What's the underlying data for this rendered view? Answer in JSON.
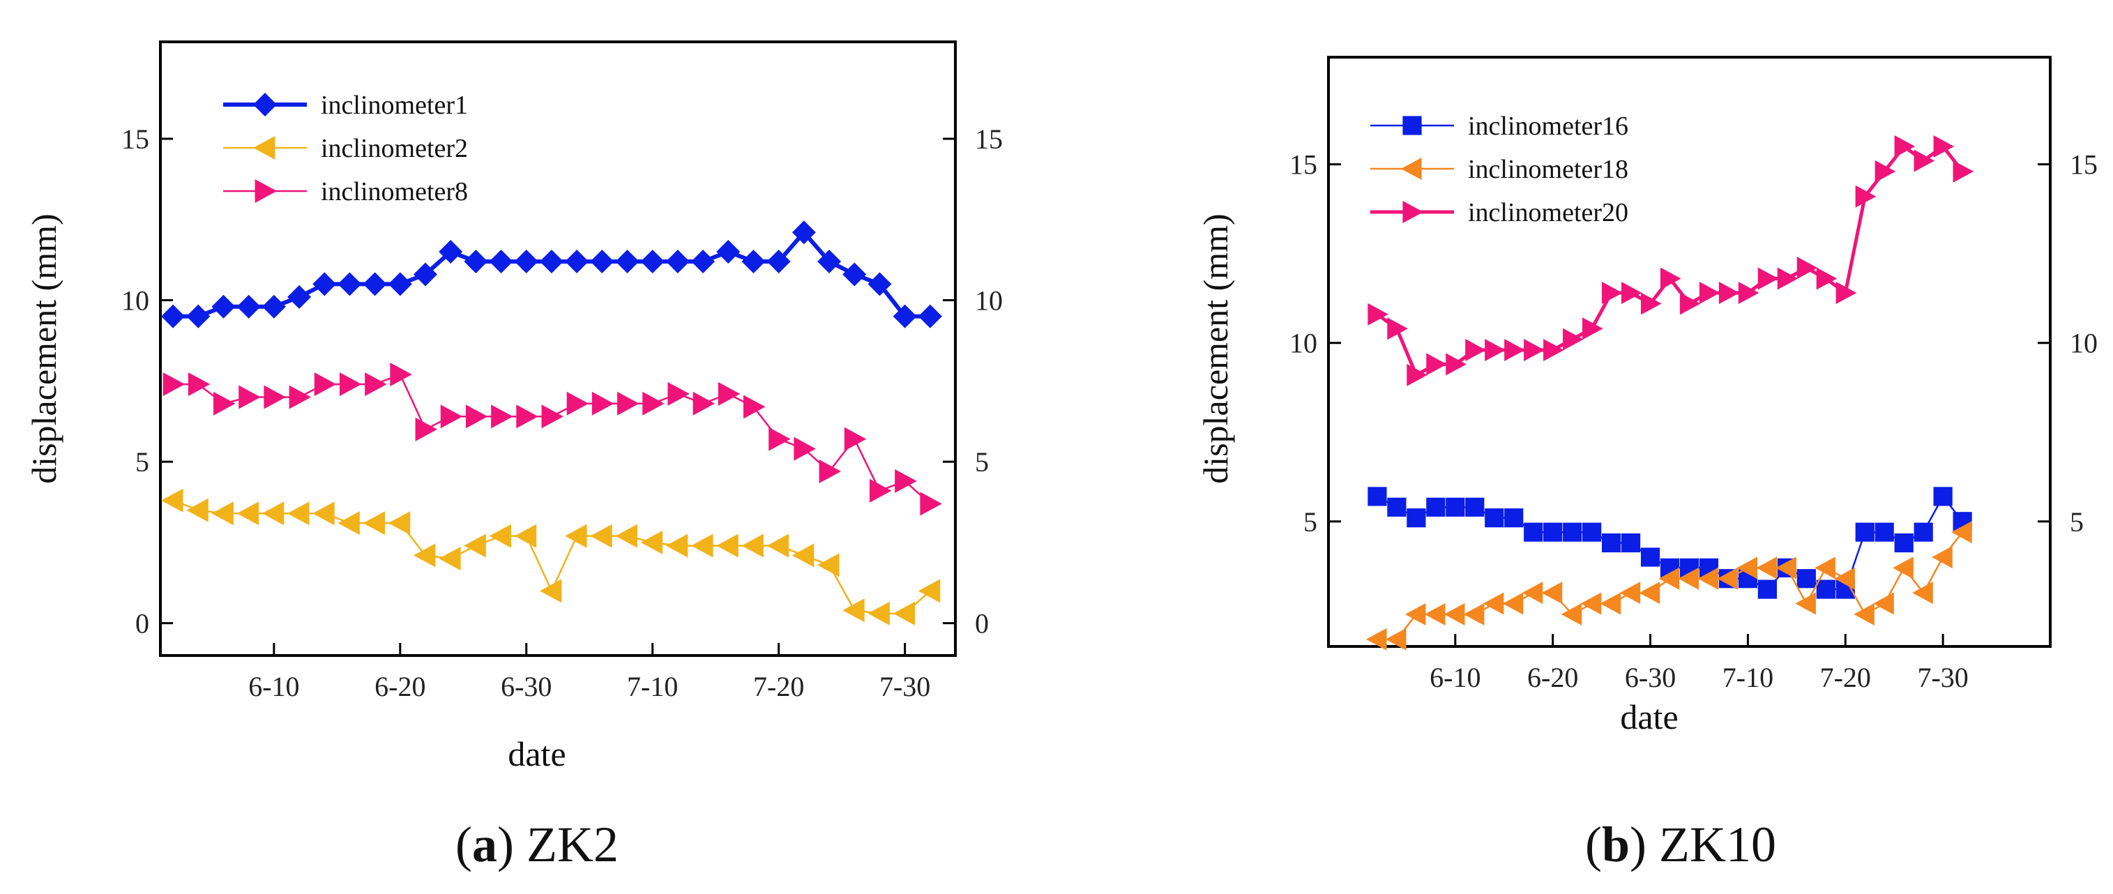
{
  "colors": {
    "inclinometer1": "#0b1ee6",
    "inclinometer2": "#f2b31a",
    "inclinometer8": "#f0147a",
    "inclinometer16": "#0b1ee6",
    "inclinometer18": "#f5871f",
    "inclinometer20": "#f0147a"
  },
  "chart_data": [
    {
      "type": "line",
      "panel": "a",
      "caption_letter": "a",
      "caption_text": "ZK2",
      "xlabel": "date",
      "ylabel": "displacement (mm)",
      "xlim": [
        "6-01",
        "8-03"
      ],
      "ylim": [
        -1,
        18
      ],
      "x_ticks": [
        "6-10",
        "6-20",
        "6-30",
        "7-10",
        "7-20",
        "7-30"
      ],
      "y_ticks": [
        0,
        5,
        10,
        15
      ],
      "y_ticks_right": [
        0,
        5,
        10,
        15
      ],
      "legend_position": "top-left",
      "series": [
        {
          "name": "inclinometer1",
          "marker": "diamond",
          "x": [
            "6-02",
            "6-04",
            "6-06",
            "6-08",
            "6-10",
            "6-12",
            "6-14",
            "6-16",
            "6-18",
            "6-20",
            "6-22",
            "6-24",
            "6-26",
            "6-28",
            "6-30",
            "7-02",
            "7-04",
            "7-06",
            "7-08",
            "7-10",
            "7-12",
            "7-14",
            "7-16",
            "7-18",
            "7-20",
            "7-22",
            "7-24",
            "7-26",
            "7-28",
            "7-30",
            "8-01"
          ],
          "values": [
            9.5,
            9.5,
            9.8,
            9.8,
            9.8,
            10.1,
            10.5,
            10.5,
            10.5,
            10.5,
            10.8,
            11.5,
            11.2,
            11.2,
            11.2,
            11.2,
            11.2,
            11.2,
            11.2,
            11.2,
            11.2,
            11.2,
            11.5,
            11.2,
            11.2,
            12.1,
            11.2,
            10.8,
            10.5,
            9.5,
            9.5
          ]
        },
        {
          "name": "inclinometer2",
          "marker": "triangle-left",
          "x": [
            "6-02",
            "6-04",
            "6-06",
            "6-08",
            "6-10",
            "6-12",
            "6-14",
            "6-16",
            "6-18",
            "6-20",
            "6-22",
            "6-24",
            "6-26",
            "6-28",
            "6-30",
            "7-02",
            "7-04",
            "7-06",
            "7-08",
            "7-10",
            "7-12",
            "7-14",
            "7-16",
            "7-18",
            "7-20",
            "7-22",
            "7-24",
            "7-26",
            "7-28",
            "7-30",
            "8-01"
          ],
          "values": [
            3.8,
            3.5,
            3.4,
            3.4,
            3.4,
            3.4,
            3.4,
            3.1,
            3.1,
            3.1,
            2.1,
            2.0,
            2.4,
            2.7,
            2.7,
            1.0,
            2.7,
            2.7,
            2.7,
            2.5,
            2.4,
            2.4,
            2.4,
            2.4,
            2.4,
            2.1,
            1.8,
            0.4,
            0.3,
            0.3,
            1.0
          ]
        },
        {
          "name": "inclinometer8",
          "marker": "triangle-right",
          "x": [
            "6-02",
            "6-04",
            "6-06",
            "6-08",
            "6-10",
            "6-12",
            "6-14",
            "6-16",
            "6-18",
            "6-20",
            "6-22",
            "6-24",
            "6-26",
            "6-28",
            "6-30",
            "7-02",
            "7-04",
            "7-06",
            "7-08",
            "7-10",
            "7-12",
            "7-14",
            "7-16",
            "7-18",
            "7-20",
            "7-22",
            "7-24",
            "7-26",
            "7-28",
            "7-30",
            "8-01"
          ],
          "values": [
            7.4,
            7.4,
            6.8,
            7.0,
            7.0,
            7.0,
            7.4,
            7.4,
            7.4,
            7.7,
            6.0,
            6.4,
            6.4,
            6.4,
            6.4,
            6.4,
            6.8,
            6.8,
            6.8,
            6.8,
            7.1,
            6.8,
            7.1,
            6.7,
            5.7,
            5.4,
            4.7,
            5.7,
            4.1,
            4.4,
            3.7
          ]
        }
      ]
    },
    {
      "type": "line",
      "panel": "b",
      "caption_letter": "b",
      "caption_text": "ZK10",
      "xlabel": "date",
      "ylabel": "displacement (mm)",
      "xlim": [
        "5-28",
        "8-10"
      ],
      "ylim": [
        1.5,
        18
      ],
      "x_ticks": [
        "6-10",
        "6-20",
        "6-30",
        "7-10",
        "7-20",
        "7-30"
      ],
      "y_ticks": [
        5,
        10,
        15
      ],
      "y_ticks_right": [
        5,
        10,
        15
      ],
      "legend_position": "top-left",
      "series": [
        {
          "name": "inclinometer16",
          "marker": "square",
          "x": [
            "6-02",
            "6-04",
            "6-06",
            "6-08",
            "6-10",
            "6-12",
            "6-14",
            "6-16",
            "6-18",
            "6-20",
            "6-22",
            "6-24",
            "6-26",
            "6-28",
            "6-30",
            "7-02",
            "7-04",
            "7-06",
            "7-08",
            "7-10",
            "7-12",
            "7-14",
            "7-16",
            "7-18",
            "7-20",
            "7-22",
            "7-24",
            "7-26",
            "7-28",
            "7-30",
            "8-01"
          ],
          "values": [
            5.7,
            5.4,
            5.1,
            5.4,
            5.4,
            5.4,
            5.1,
            5.1,
            4.7,
            4.7,
            4.7,
            4.7,
            4.4,
            4.4,
            4.0,
            3.7,
            3.7,
            3.7,
            3.4,
            3.4,
            3.1,
            3.7,
            3.4,
            3.1,
            3.1,
            4.7,
            4.7,
            4.4,
            4.7,
            5.7,
            5.0
          ]
        },
        {
          "name": "inclinometer18",
          "marker": "triangle-left",
          "x": [
            "6-02",
            "6-04",
            "6-06",
            "6-08",
            "6-10",
            "6-12",
            "6-14",
            "6-16",
            "6-18",
            "6-20",
            "6-22",
            "6-24",
            "6-26",
            "6-28",
            "6-30",
            "7-02",
            "7-04",
            "7-06",
            "7-08",
            "7-10",
            "7-12",
            "7-14",
            "7-16",
            "7-18",
            "7-20",
            "7-22",
            "7-24",
            "7-26",
            "7-28",
            "7-30",
            "8-01"
          ],
          "values": [
            1.7,
            1.7,
            2.4,
            2.4,
            2.4,
            2.4,
            2.7,
            2.7,
            3.0,
            3.0,
            2.4,
            2.7,
            2.7,
            3.0,
            3.0,
            3.4,
            3.4,
            3.4,
            3.4,
            3.7,
            3.7,
            3.7,
            2.7,
            3.7,
            3.4,
            2.4,
            2.7,
            3.7,
            3.0,
            4.0,
            4.7
          ]
        },
        {
          "name": "inclinometer20",
          "marker": "triangle-right",
          "x": [
            "6-02",
            "6-04",
            "6-06",
            "6-08",
            "6-10",
            "6-12",
            "6-14",
            "6-16",
            "6-18",
            "6-20",
            "6-22",
            "6-24",
            "6-26",
            "6-28",
            "6-30",
            "7-02",
            "7-04",
            "7-06",
            "7-08",
            "7-10",
            "7-12",
            "7-14",
            "7-16",
            "7-18",
            "7-20",
            "7-22",
            "7-24",
            "7-26",
            "7-28",
            "7-30",
            "8-01"
          ],
          "values": [
            10.8,
            10.4,
            9.1,
            9.4,
            9.4,
            9.8,
            9.8,
            9.8,
            9.8,
            9.8,
            10.1,
            10.4,
            11.4,
            11.4,
            11.1,
            11.8,
            11.1,
            11.4,
            11.4,
            11.4,
            11.8,
            11.8,
            12.1,
            11.8,
            11.4,
            14.1,
            14.8,
            15.5,
            15.1,
            15.5,
            14.8
          ]
        }
      ]
    }
  ]
}
